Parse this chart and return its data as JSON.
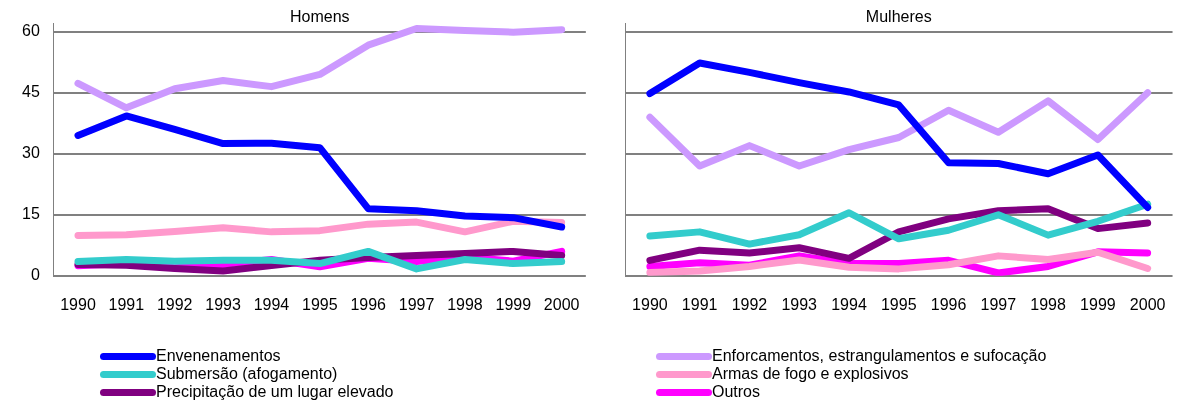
{
  "chart_data": [
    {
      "type": "line",
      "title": "Homens",
      "categories": [
        "1990",
        "1991",
        "1992",
        "1993",
        "1994",
        "1995",
        "1996",
        "1997",
        "1998",
        "1999",
        "2000"
      ],
      "ylim": [
        0,
        62
      ],
      "yticks": [
        0,
        15,
        30,
        45,
        60
      ],
      "grid": "y",
      "legend": "bottom",
      "marker": "none",
      "line_style": "solid",
      "series": [
        {
          "name": "Envenenamentos",
          "color": "#0000ff",
          "values": [
            34.5,
            39.3,
            36,
            32.5,
            32.6,
            31.5,
            16.5,
            16,
            14.7,
            14.3,
            12
          ]
        },
        {
          "name": "Enforcamentos, estrangulamentos e sufocação",
          "color": "#cc99ff",
          "values": [
            47.3,
            41.3,
            46,
            48,
            46.5,
            49.5,
            56.7,
            60.8,
            60.3,
            59.9,
            60.5
          ]
        },
        {
          "name": "Submersão (afogamento)",
          "color": "#33cccc",
          "values": [
            3.5,
            4,
            3.6,
            3.8,
            3.8,
            3,
            6,
            1.7,
            4,
            3,
            3.5
          ]
        },
        {
          "name": "Armas de fogo e explosivos",
          "color": "#ff99cc",
          "values": [
            9.9,
            10.1,
            10.9,
            11.8,
            10.8,
            11.1,
            12.7,
            13.2,
            10.8,
            13.4,
            13.1
          ]
        },
        {
          "name": "Precipitação de um lugar elevado",
          "color": "#800080",
          "values": [
            2.8,
            2.6,
            1.8,
            1.2,
            2.5,
            3.8,
            4.5,
            5,
            5.5,
            6,
            5
          ]
        },
        {
          "name": "Outros",
          "color": "#ff00ff",
          "values": [
            2.5,
            3,
            2,
            2.8,
            4,
            2.2,
            4.3,
            3.5,
            4.6,
            3.6,
            6
          ]
        }
      ]
    },
    {
      "type": "line",
      "title": "Mulheres",
      "categories": [
        "1990",
        "1991",
        "1992",
        "1993",
        "1994",
        "1995",
        "1996",
        "1997",
        "1998",
        "1999",
        "2000"
      ],
      "ylim": [
        0,
        62
      ],
      "yticks": [
        0,
        15,
        30,
        45,
        60
      ],
      "grid": "y",
      "tick_labels": "x",
      "marker": "none",
      "line_style": "solid",
      "series": [
        {
          "color": "#0000ff",
          "values": [
            44.8,
            52.3,
            50,
            47.5,
            45.2,
            42,
            27.8,
            27.6,
            25.1,
            29.7,
            16.8
          ]
        },
        {
          "color": "#cc99ff",
          "values": [
            39,
            27,
            32,
            27,
            31,
            34,
            40.7,
            35.3,
            43,
            33.5,
            45
          ]
        },
        {
          "color": "#33cccc",
          "values": [
            9.8,
            10.8,
            7.8,
            10.1,
            15.5,
            9.1,
            11.2,
            15,
            10,
            13.4,
            17.6
          ]
        },
        {
          "color": "#ff99cc",
          "values": [
            0.8,
            1.2,
            2.3,
            3.9,
            2.1,
            1.7,
            2.7,
            4.9,
            4,
            5.8,
            1.8
          ]
        },
        {
          "color": "#800080",
          "values": [
            3.8,
            6.3,
            5.6,
            6.9,
            4.3,
            10.8,
            14,
            16,
            16.5,
            11.6,
            13
          ]
        },
        {
          "color": "#ff00ff",
          "values": [
            2.3,
            3.2,
            2.6,
            4.9,
            3,
            3,
            3.8,
            0.7,
            2.3,
            5.9,
            5.6
          ]
        }
      ]
    }
  ]
}
